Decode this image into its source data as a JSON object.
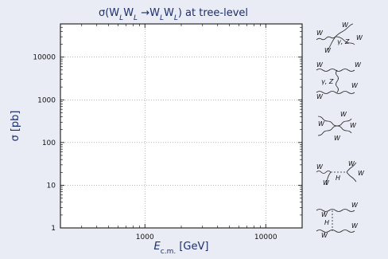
{
  "chart_data": {
    "type": "line",
    "title": "σ(W_L W_L → W_L W_L) at tree-level",
    "xlabel": "E_c.m. [GeV]",
    "ylabel": "σ [pb]",
    "xscale": "log",
    "yscale": "log",
    "xlim": [
      200,
      20000
    ],
    "ylim": [
      1,
      60000
    ],
    "grid": true,
    "x_ticks": [
      {
        "value": 1000,
        "label": "1000"
      },
      {
        "value": 10000,
        "label": "10000"
      }
    ],
    "y_ticks": [
      {
        "value": 1,
        "label": "1"
      },
      {
        "value": 10,
        "label": "10"
      },
      {
        "value": 100,
        "label": "100"
      },
      {
        "value": 1000,
        "label": "1000"
      },
      {
        "value": 10000,
        "label": "10000"
      }
    ],
    "series": []
  },
  "diagrams": [
    {
      "name": "s-channel",
      "labels": [
        "W",
        "W",
        "W",
        "W",
        "γ, Z"
      ]
    },
    {
      "name": "t-channel",
      "labels": [
        "W",
        "W",
        "W",
        "W",
        "γ, Z"
      ]
    },
    {
      "name": "contact",
      "labels": [
        "W",
        "W",
        "W",
        "W"
      ]
    },
    {
      "name": "higgs-s-channel",
      "labels": [
        "W",
        "W",
        "W",
        "W",
        "H"
      ]
    },
    {
      "name": "higgs-t-channel",
      "labels": [
        "W",
        "W",
        "W",
        "W",
        "H"
      ]
    }
  ],
  "colors": {
    "background": "#e9ecf4",
    "text": "#1c2e6b",
    "frame": "#000000",
    "grid": "#888888"
  }
}
